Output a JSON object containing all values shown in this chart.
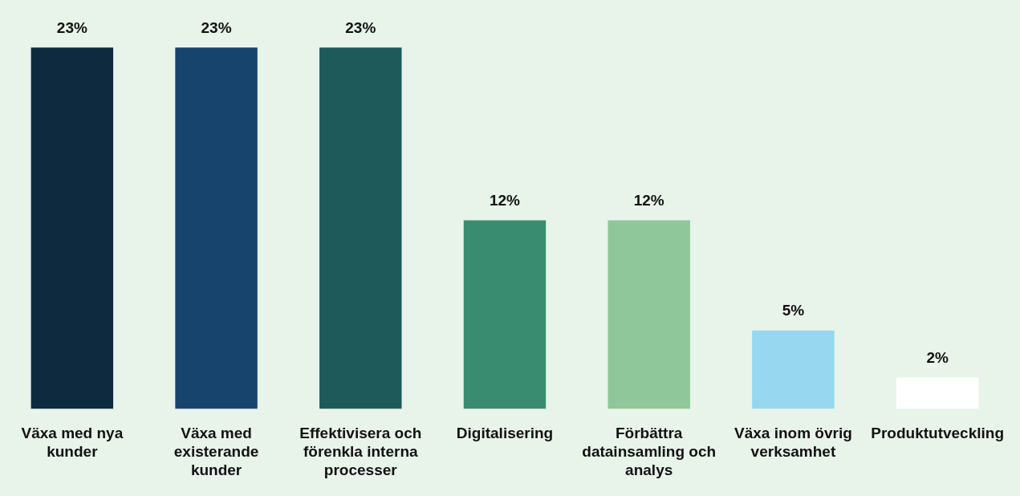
{
  "chart_data": {
    "type": "bar",
    "categories": [
      "Växa med nya kunder",
      "Växa med existerande kunder",
      "Effektivisera och förenkla interna processer",
      "Digitalisering",
      "Förbättra datainsamling och analys",
      "Växa inom övrig verksamhet",
      "Produktutveckling"
    ],
    "values": [
      23,
      23,
      23,
      12,
      12,
      5,
      2
    ],
    "colors": [
      "#0e2a3f",
      "#17446d",
      "#1e5a5a",
      "#3a8c70",
      "#8fc79a",
      "#97d7f0",
      "#ffffff"
    ],
    "value_labels": [
      "23%",
      "23%",
      "23%",
      "12%",
      "12%",
      "5%",
      "2%"
    ],
    "grid": false,
    "legend": false
  }
}
